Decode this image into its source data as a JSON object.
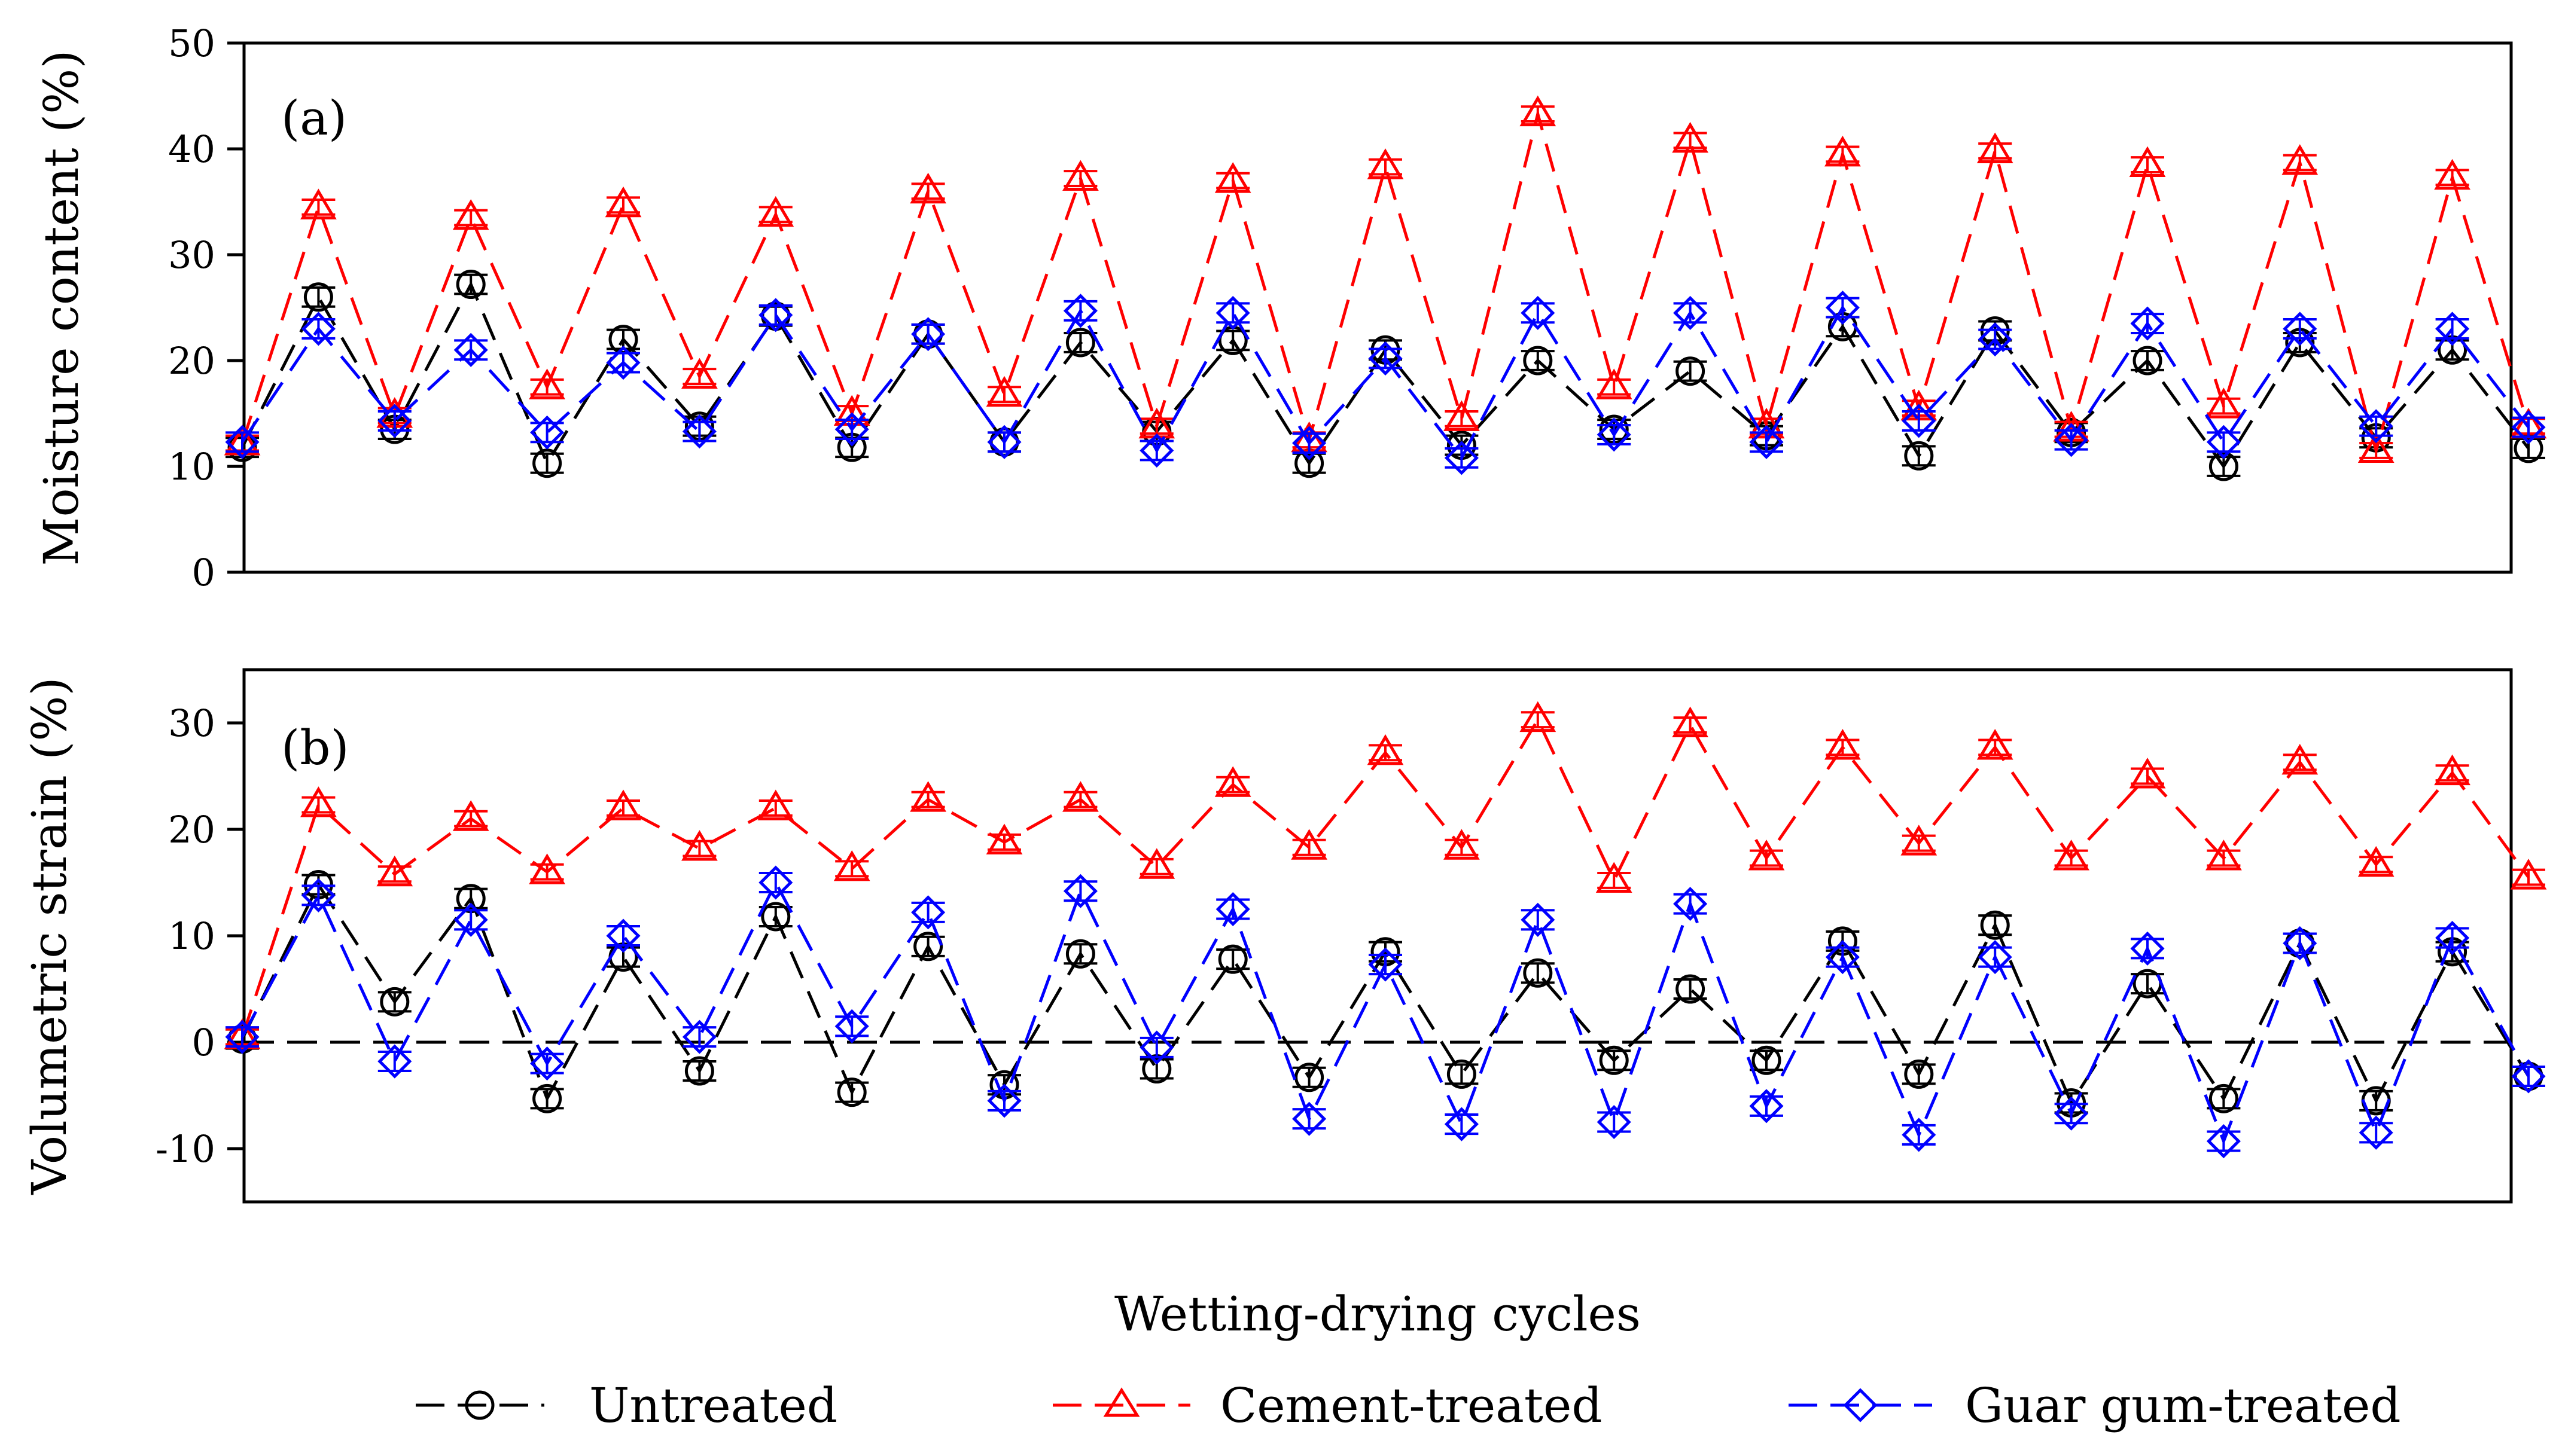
{
  "chart_data": [
    {
      "type": "line",
      "panel_label": "(a)",
      "ylabel": "Moisture content (%)",
      "ylim": [
        0,
        50
      ],
      "yticks": [
        0,
        10,
        20,
        30,
        40,
        50
      ],
      "x": [
        1,
        2,
        3,
        4,
        5,
        6,
        7,
        8,
        9,
        10,
        11,
        12,
        13,
        14,
        15,
        16,
        17,
        18,
        19,
        20,
        21,
        22,
        23,
        24,
        25,
        26,
        27,
        28,
        29,
        30,
        31
      ],
      "series": [
        {
          "name": "Untreated",
          "color": "#000000",
          "marker": "circle",
          "values": [
            11.8,
            26,
            13.5,
            27.2,
            10.3,
            22,
            13.8,
            24.2,
            11.8,
            22.5,
            12.3,
            21.7,
            13.3,
            21.9,
            10.3,
            21,
            12,
            20,
            13.5,
            19,
            12.9,
            23.2,
            11,
            22.8,
            13.2,
            20,
            10,
            21.7,
            12.7,
            21,
            11.7
          ]
        },
        {
          "name": "Cement-treated",
          "color": "#ff0000",
          "marker": "triangle",
          "values": [
            12.2,
            34.5,
            14.8,
            33.5,
            17.5,
            34.7,
            18.5,
            33.8,
            15,
            36,
            16.8,
            37.2,
            13.8,
            37,
            12.5,
            38.3,
            14.5,
            43.3,
            17.5,
            40.8,
            13.8,
            39.5,
            15.5,
            39.8,
            13.5,
            38.5,
            15.7,
            38.7,
            11.5,
            37.3,
            13.8
          ]
        },
        {
          "name": "Guar gum-treated",
          "color": "#0000ff",
          "marker": "diamond",
          "values": [
            12.3,
            23,
            14.3,
            21,
            13.2,
            19.8,
            13.3,
            24.3,
            13.5,
            22.5,
            12.3,
            24.7,
            11.5,
            24.5,
            12.2,
            20.2,
            10.8,
            24.5,
            13,
            24.5,
            12.3,
            25,
            14.3,
            22,
            12.5,
            23.5,
            12.3,
            23,
            13.8,
            23,
            13.7
          ]
        }
      ]
    },
    {
      "type": "line",
      "panel_label": "(b)",
      "ylabel": "Volumetric strain (%)",
      "ylim": [
        -15,
        35
      ],
      "yticks": [
        -10,
        0,
        10,
        20,
        30
      ],
      "zero_line": true,
      "xlabel": "Wetting-drying cycles",
      "x": [
        1,
        2,
        3,
        4,
        5,
        6,
        7,
        8,
        9,
        10,
        11,
        12,
        13,
        14,
        15,
        16,
        17,
        18,
        19,
        20,
        21,
        22,
        23,
        24,
        25,
        26,
        27,
        28,
        29,
        30,
        31
      ],
      "series": [
        {
          "name": "Untreated",
          "color": "#000000",
          "marker": "circle",
          "values": [
            0.3,
            14.8,
            3.8,
            13.5,
            -5.3,
            8,
            -2.7,
            11.8,
            -4.7,
            9,
            -4,
            8.3,
            -2.5,
            7.8,
            -3.3,
            8.5,
            -3,
            6.5,
            -1.7,
            5,
            -1.7,
            9.5,
            -3,
            11,
            -5.7,
            5.5,
            -5.3,
            9.3,
            -5.5,
            8.5,
            -3.2
          ]
        },
        {
          "name": "Cement-treated",
          "color": "#ff0000",
          "marker": "triangle",
          "values": [
            0.5,
            22.3,
            15.8,
            21,
            16,
            22,
            18.2,
            22,
            16.3,
            22.8,
            18.8,
            22.8,
            16.5,
            24.2,
            18.3,
            27.2,
            18.3,
            30.3,
            15.2,
            29.8,
            17.3,
            27.7,
            18.7,
            27.7,
            17.3,
            25,
            17.3,
            26.3,
            16.7,
            25.3,
            15.5
          ]
        },
        {
          "name": "Guar gum-treated",
          "color": "#0000ff",
          "marker": "diamond",
          "values": [
            0.5,
            13.8,
            -1.8,
            11.5,
            -2,
            10,
            0.5,
            15,
            1.5,
            12.2,
            -5.5,
            14.2,
            -0.5,
            12.5,
            -7.2,
            7.3,
            -7.7,
            11.5,
            -7.5,
            13,
            -6,
            8,
            -8.7,
            8,
            -6.7,
            8.8,
            -9.3,
            9.3,
            -8.5,
            9.8,
            -3.2
          ]
        }
      ]
    }
  ],
  "legend": {
    "entries": [
      {
        "label": "Untreated",
        "color": "#000000",
        "marker": "circle"
      },
      {
        "label": "Cement-treated",
        "color": "#ff0000",
        "marker": "triangle"
      },
      {
        "label": "Guar gum-treated",
        "color": "#0000ff",
        "marker": "diamond"
      }
    ]
  }
}
